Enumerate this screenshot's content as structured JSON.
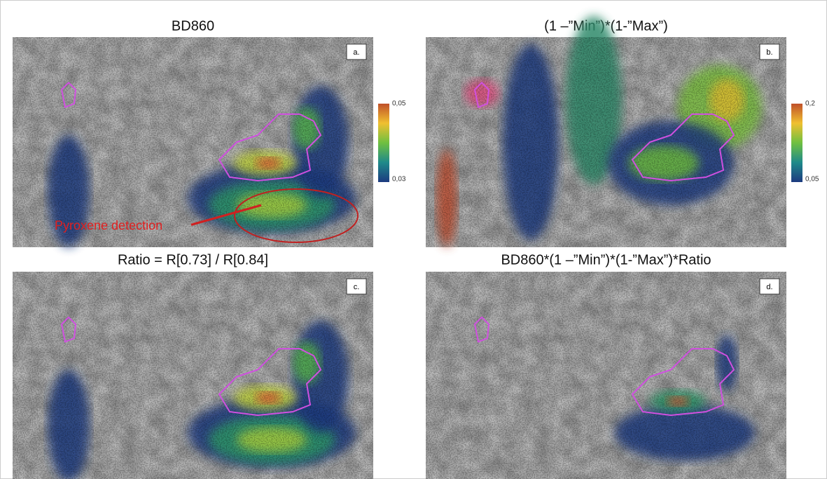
{
  "panels": [
    {
      "title": "BD860",
      "letter": "a.",
      "colorbar": {
        "max": "0,05",
        "min": "0,03"
      },
      "annotation": "Pyroxene detection"
    },
    {
      "title": "(1 –”Min”)*(1-”Max”)",
      "letter": "b.",
      "colorbar": {
        "max": "0,2",
        "min": "0,05"
      }
    },
    {
      "title": "Ratio = R[0.73] / R[0.84]",
      "letter": "c."
    },
    {
      "title": "BD860*(1 –”Min”)*(1-”Max”)*Ratio",
      "letter": "d."
    }
  ]
}
